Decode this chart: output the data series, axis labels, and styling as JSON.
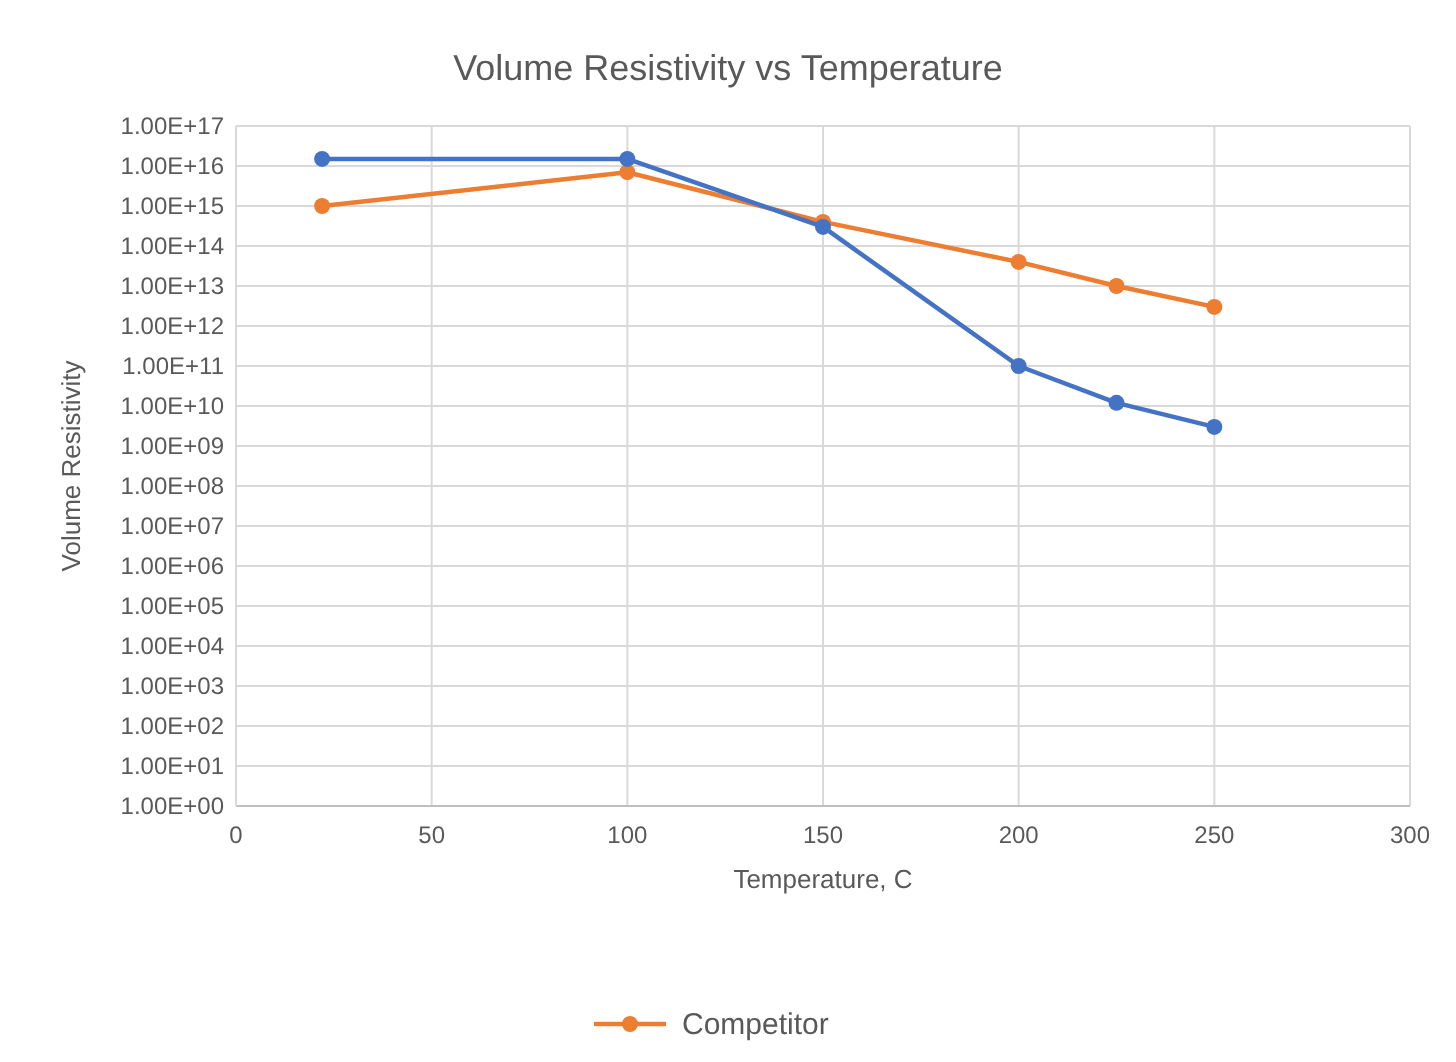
{
  "chart_data": {
    "type": "line",
    "title": "Volume Resistivity vs Temperature",
    "xlabel": "Temperature, C",
    "ylabel": "Volume Resistivity",
    "x": [
      22,
      100,
      150,
      200,
      225,
      250
    ],
    "series": [
      {
        "color": "#4472c4",
        "values": [
          1.5e+16,
          1.5e+16,
          300000000000000.0,
          100000000000.0,
          12000000000.0,
          3000000000.0
        ]
      },
      {
        "name": "Competitor",
        "color": "#ed7d31",
        "values": [
          1000000000000000.0,
          7000000000000000.0,
          400000000000000.0,
          40000000000000.0,
          10000000000000.0,
          3000000000000.0
        ]
      }
    ],
    "log": "y",
    "xlim": [
      0,
      300
    ],
    "xticks": [
      0,
      50,
      100,
      150,
      200,
      250,
      300
    ],
    "ylim": [
      1,
      1e+17
    ],
    "yticks": [
      {
        "value": 1,
        "label": "1.00E+00"
      },
      {
        "value": 10.0,
        "label": "1.00E+01"
      },
      {
        "value": 100.0,
        "label": "1.00E+02"
      },
      {
        "value": 1000.0,
        "label": "1.00E+03"
      },
      {
        "value": 10000.0,
        "label": "1.00E+04"
      },
      {
        "value": 100000.0,
        "label": "1.00E+05"
      },
      {
        "value": 1000000.0,
        "label": "1.00E+06"
      },
      {
        "value": 10000000.0,
        "label": "1.00E+07"
      },
      {
        "value": 100000000.0,
        "label": "1.00E+08"
      },
      {
        "value": 1000000000.0,
        "label": "1.00E+09"
      },
      {
        "value": 10000000000.0,
        "label": "1.00E+10"
      },
      {
        "value": 100000000000.0,
        "label": "1.00E+11"
      },
      {
        "value": 1000000000000.0,
        "label": "1.00E+12"
      },
      {
        "value": 10000000000000.0,
        "label": "1.00E+13"
      },
      {
        "value": 100000000000000.0,
        "label": "1.00E+14"
      },
      {
        "value": 1000000000000000.0,
        "label": "1.00E+15"
      },
      {
        "value": 1e+16,
        "label": "1.00E+16"
      },
      {
        "value": 1e+17,
        "label": "1.00E+17"
      }
    ],
    "grid": true,
    "legend": "bottom",
    "marker": "circle",
    "line_style": "solid"
  }
}
